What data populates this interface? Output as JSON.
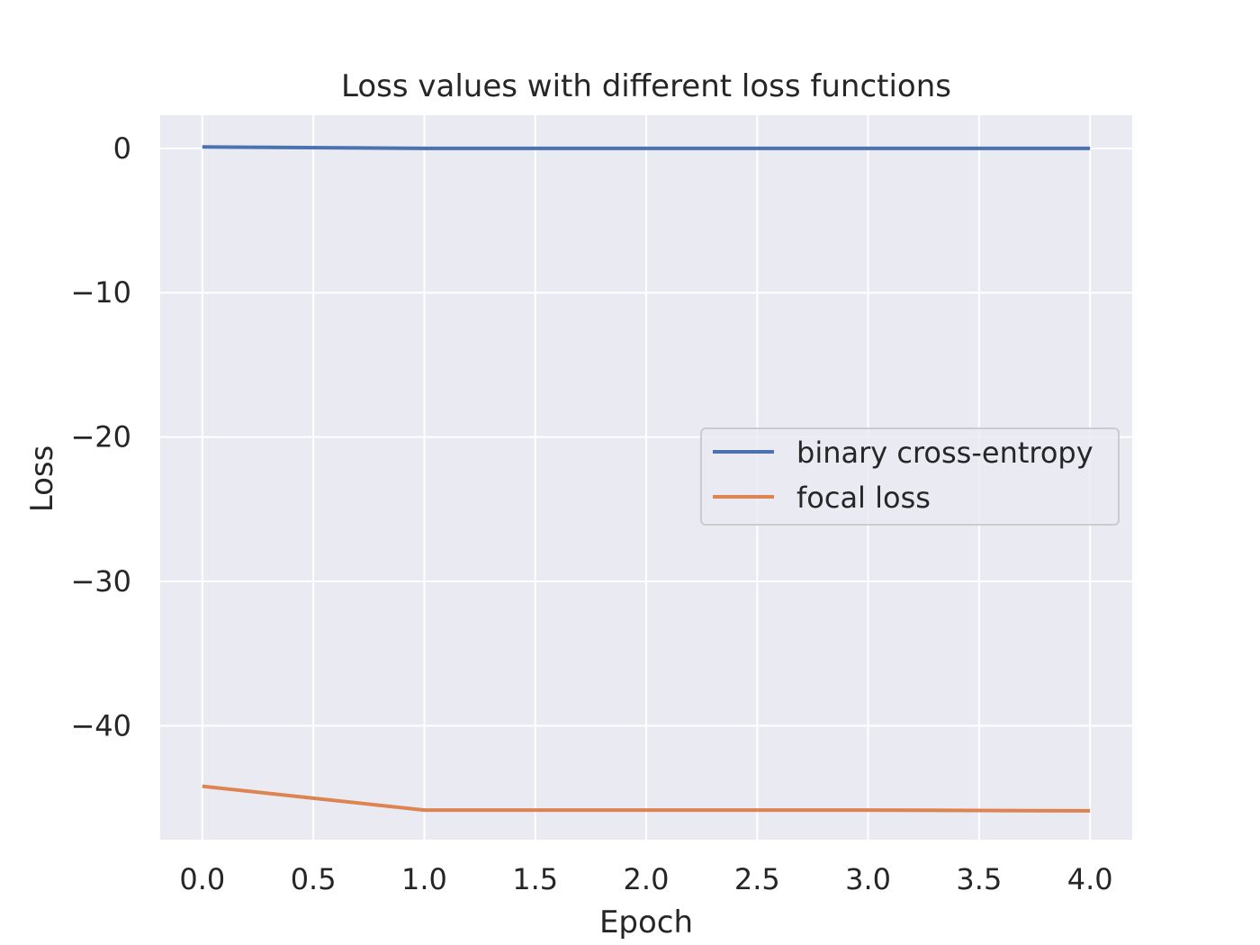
{
  "chart_data": {
    "type": "line",
    "title": "Loss values with different loss functions",
    "xlabel": "Epoch",
    "ylabel": "Loss",
    "x": [
      0,
      1,
      2,
      3,
      4
    ],
    "xlim": [
      -0.19,
      4.19
    ],
    "ylim": [
      -47.9,
      2.3
    ],
    "xticks": [
      0.0,
      0.5,
      1.0,
      1.5,
      2.0,
      2.5,
      3.0,
      3.5,
      4.0
    ],
    "xtick_labels": [
      "0.0",
      "0.5",
      "1.0",
      "1.5",
      "2.0",
      "2.5",
      "3.0",
      "3.5",
      "4.0"
    ],
    "yticks": [
      0,
      -10,
      -20,
      -30,
      -40
    ],
    "ytick_labels": [
      "0",
      "−10",
      "−20",
      "−30",
      "−40"
    ],
    "grid": true,
    "legend_position": "center-right",
    "series": [
      {
        "name": "binary cross-entropy",
        "color": "#4c72b0",
        "values": [
          0.1,
          0.0,
          0.0,
          0.0,
          0.0
        ]
      },
      {
        "name": "focal loss",
        "color": "#dd8452",
        "values": [
          -44.2,
          -45.85,
          -45.85,
          -45.85,
          -45.9
        ]
      }
    ],
    "plot_background": "#eaeaf2",
    "grid_color": "#ffffff"
  }
}
